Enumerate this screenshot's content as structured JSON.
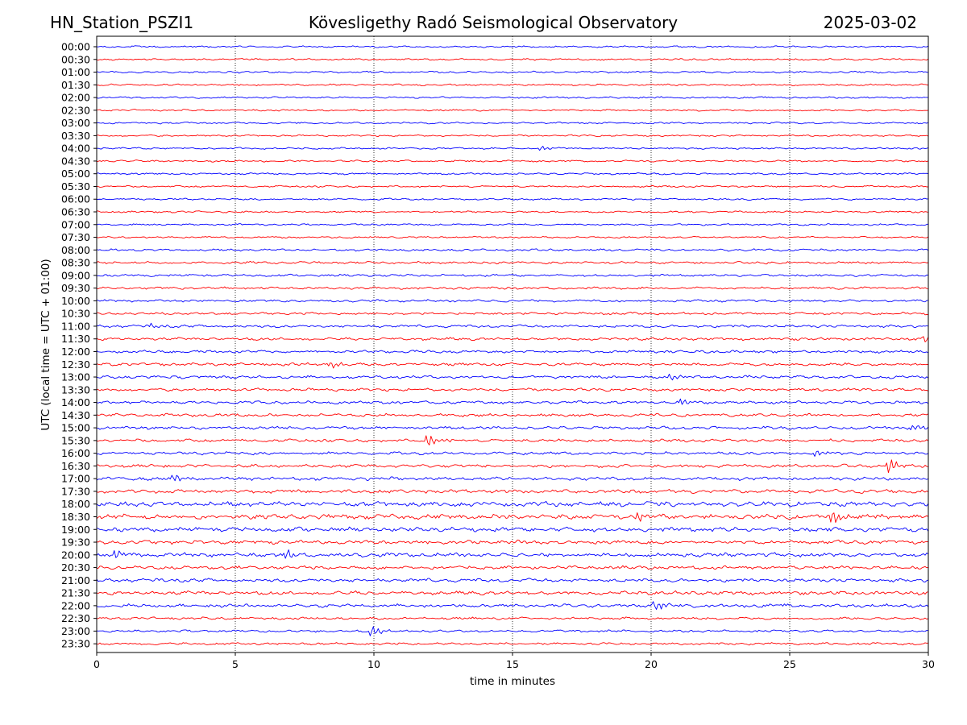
{
  "header": {
    "station": "HN_Station_PSZI1",
    "observatory": "Kövesligethy Radó Seismological Observatory",
    "date": "2025-03-02"
  },
  "chart_data": {
    "type": "line",
    "title": "Kövesligethy Radó Seismological Observatory",
    "xlabel": "time in minutes",
    "ylabel": "UTC (local time = UTC + 01:00)",
    "xlim": [
      0,
      30
    ],
    "x_ticks": [
      0,
      5,
      10,
      15,
      20,
      25,
      30
    ],
    "grid": {
      "vertical_dotted": true,
      "horizontal": false
    },
    "trace_colors": [
      "#0000ff",
      "#ff0000"
    ],
    "rows": [
      "00:00",
      "00:30",
      "01:00",
      "01:30",
      "02:00",
      "02:30",
      "03:00",
      "03:30",
      "04:00",
      "04:30",
      "05:00",
      "05:30",
      "06:00",
      "06:30",
      "07:00",
      "07:30",
      "08:00",
      "08:30",
      "09:00",
      "09:30",
      "10:00",
      "10:30",
      "11:00",
      "11:30",
      "12:00",
      "12:30",
      "13:00",
      "13:30",
      "14:00",
      "14:30",
      "15:00",
      "15:30",
      "16:00",
      "16:30",
      "17:00",
      "17:30",
      "18:00",
      "18:30",
      "19:00",
      "19:30",
      "20:00",
      "20:30",
      "21:00",
      "21:30",
      "22:00",
      "22:30",
      "23:00",
      "23:30"
    ],
    "relative_noise_amplitude": [
      1,
      1,
      1,
      1,
      1,
      1,
      1,
      1,
      1,
      1,
      1,
      1,
      1,
      1,
      1,
      1,
      1.2,
      1.3,
      1.3,
      1.3,
      1.3,
      1.4,
      1.5,
      1.5,
      1.5,
      1.6,
      1.6,
      1.6,
      1.6,
      1.6,
      1.6,
      1.6,
      1.6,
      1.7,
      1.8,
      2.0,
      2.6,
      2.6,
      2.4,
      2.0,
      2.2,
      1.9,
      1.9,
      2.0,
      1.8,
      1.4,
      1.3,
      1.3
    ],
    "events": [
      {
        "row": "04:00",
        "minute": 16.1,
        "amplitude": 2
      },
      {
        "row": "11:00",
        "minute": 2.0,
        "amplitude": 2
      },
      {
        "row": "11:30",
        "minute": 29.9,
        "amplitude": 3
      },
      {
        "row": "12:30",
        "minute": 8.5,
        "amplitude": 2.5
      },
      {
        "row": "13:00",
        "minute": 20.8,
        "amplitude": 2.5
      },
      {
        "row": "14:00",
        "minute": 21.2,
        "amplitude": 2.5
      },
      {
        "row": "15:00",
        "minute": 29.5,
        "amplitude": 3
      },
      {
        "row": "15:30",
        "minute": 12.0,
        "amplitude": 5
      },
      {
        "row": "16:00",
        "minute": 26.0,
        "amplitude": 3
      },
      {
        "row": "16:30",
        "minute": 28.6,
        "amplitude": 6
      },
      {
        "row": "17:00",
        "minute": 2.8,
        "amplitude": 3
      },
      {
        "row": "18:30",
        "minute": 26.6,
        "amplitude": 5
      },
      {
        "row": "18:30",
        "minute": 19.6,
        "amplitude": 4
      },
      {
        "row": "20:00",
        "minute": 6.9,
        "amplitude": 4
      },
      {
        "row": "20:00",
        "minute": 0.7,
        "amplitude": 3
      },
      {
        "row": "22:00",
        "minute": 20.2,
        "amplitude": 4
      },
      {
        "row": "23:00",
        "minute": 10.0,
        "amplitude": 4
      }
    ]
  }
}
